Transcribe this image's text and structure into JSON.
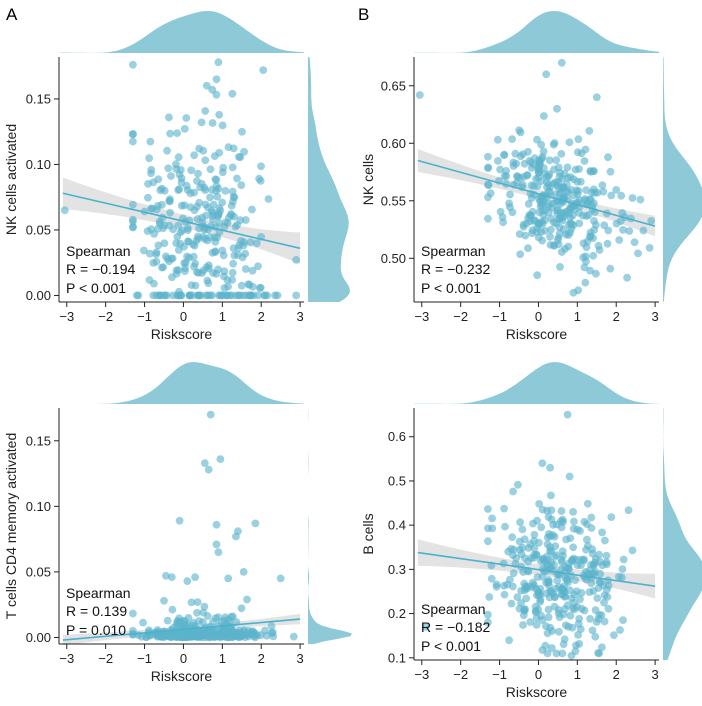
{
  "point_color": "#5cb3cc",
  "density_color": "#8ec9d8",
  "line_color": "#48b3cf",
  "band_color": "#d9d9d9",
  "chart_data": [
    {
      "type": "scatter",
      "panel_letter": "A",
      "xlabel": "Riskscore",
      "ylabel": "NK cells activated",
      "xlim": [
        -3.2,
        3.1
      ],
      "ylim": [
        -0.005,
        0.182
      ],
      "xticks": [
        -3,
        -2,
        -1,
        0,
        1,
        2,
        3
      ],
      "xtick_labels": [
        "−3",
        "−2",
        "−1",
        "0",
        "1",
        "2",
        "3"
      ],
      "yticks": [
        0.0,
        0.05,
        0.1,
        0.15
      ],
      "ytick_labels": [
        "0.00",
        "0.05",
        "0.10",
        "0.15"
      ],
      "stat_label": "Spearman",
      "r_text": "R = −0.194",
      "p_text": "P < 0.001",
      "fit_line": {
        "x": [
          -3.1,
          3.0
        ],
        "y": [
          0.078,
          0.036
        ]
      },
      "band_halfwidth": [
        0.012,
        0.005,
        0.012
      ],
      "y_mean": 0.055,
      "y_sd": 0.036,
      "y_floor": 0.0,
      "y_max": 0.178,
      "n_points": 320,
      "zero_fraction": 0.09,
      "seed": 11,
      "extra_points": [
        [
          -3.05,
          0.065
        ],
        [
          0.9,
          0.178
        ],
        [
          2.05,
          0.172
        ],
        [
          0.85,
          0.165
        ],
        [
          0.6,
          0.16
        ]
      ]
    },
    {
      "type": "scatter",
      "panel_letter": "B",
      "xlabel": "Riskscore",
      "ylabel": "NK cells",
      "xlim": [
        -3.2,
        3.1
      ],
      "ylim": [
        0.462,
        0.675
      ],
      "xticks": [
        -3,
        -2,
        -1,
        0,
        1,
        2,
        3
      ],
      "xtick_labels": [
        "−3",
        "−2",
        "−1",
        "0",
        "1",
        "2",
        "3"
      ],
      "yticks": [
        0.5,
        0.55,
        0.6,
        0.65
      ],
      "ytick_labels": [
        "0.50",
        "0.55",
        "0.60",
        "0.65"
      ],
      "stat_label": "Spearman",
      "r_text": "R = −0.232",
      "p_text": "P < 0.001",
      "fit_line": {
        "x": [
          -3.1,
          3.0
        ],
        "y": [
          0.585,
          0.528
        ]
      },
      "band_halfwidth": [
        0.01,
        0.004,
        0.009
      ],
      "y_mean": 0.553,
      "y_sd": 0.025,
      "y_floor": 0.47,
      "y_max": 0.67,
      "n_points": 320,
      "zero_fraction": 0.0,
      "seed": 23,
      "extra_points": [
        [
          -3.05,
          0.642
        ],
        [
          0.6,
          0.67
        ],
        [
          0.2,
          0.66
        ],
        [
          1.5,
          0.64
        ],
        [
          0.9,
          0.47
        ]
      ]
    },
    {
      "type": "scatter",
      "panel_letter": "",
      "xlabel": "Riskscore",
      "ylabel": "T cells CD4 memory activated",
      "xlim": [
        -3.2,
        3.1
      ],
      "ylim": [
        -0.005,
        0.175
      ],
      "xticks": [
        -3,
        -2,
        -1,
        0,
        1,
        2,
        3
      ],
      "xtick_labels": [
        "−3",
        "−2",
        "−1",
        "0",
        "1",
        "2",
        "3"
      ],
      "yticks": [
        0.0,
        0.05,
        0.1,
        0.15
      ],
      "ytick_labels": [
        "0.00",
        "0.05",
        "0.10",
        "0.15"
      ],
      "stat_label": "Spearman",
      "r_text": "R = 0.139",
      "p_text": "P = 0.010",
      "fit_line": {
        "x": [
          -3.1,
          3.0
        ],
        "y": [
          -0.002,
          0.014
        ]
      },
      "band_halfwidth": [
        0.004,
        0.002,
        0.004
      ],
      "y_mean": 0.004,
      "y_sd": 0.012,
      "y_floor": 0.0,
      "y_max": 0.17,
      "n_points": 320,
      "zero_fraction": 0.62,
      "seed": 37,
      "extra_points": [
        [
          0.7,
          0.17
        ],
        [
          0.95,
          0.136
        ],
        [
          0.55,
          0.133
        ],
        [
          0.65,
          0.128
        ],
        [
          -0.1,
          0.089
        ],
        [
          0.85,
          0.086
        ],
        [
          1.4,
          0.081
        ],
        [
          1.85,
          0.087
        ],
        [
          0.85,
          0.071
        ],
        [
          0.9,
          0.065
        ],
        [
          1.35,
          0.077
        ],
        [
          1.55,
          0.05
        ],
        [
          2.5,
          0.045
        ],
        [
          -0.45,
          0.047
        ],
        [
          -0.3,
          0.046
        ],
        [
          0.3,
          0.046
        ],
        [
          0.1,
          0.043
        ],
        [
          1.15,
          0.045
        ]
      ]
    },
    {
      "type": "scatter",
      "panel_letter": "",
      "xlabel": "Riskscore",
      "ylabel": "B cells",
      "xlim": [
        -3.2,
        3.1
      ],
      "ylim": [
        0.095,
        0.665
      ],
      "xticks": [
        -3,
        -2,
        -1,
        0,
        1,
        2,
        3
      ],
      "xtick_labels": [
        "−3",
        "−2",
        "−1",
        "0",
        "1",
        "2",
        "3"
      ],
      "yticks": [
        0.1,
        0.2,
        0.3,
        0.4,
        0.5,
        0.6
      ],
      "ytick_labels": [
        "0.1",
        "0.2",
        "0.3",
        "0.4",
        "0.5",
        "0.6"
      ],
      "stat_label": "Spearman",
      "r_text": "R = −0.182",
      "p_text": "P < 0.001",
      "fit_line": {
        "x": [
          -3.1,
          3.0
        ],
        "y": [
          0.338,
          0.262
        ]
      },
      "band_halfwidth": [
        0.03,
        0.012,
        0.028
      ],
      "y_mean": 0.29,
      "y_sd": 0.075,
      "y_floor": 0.11,
      "y_max": 0.65,
      "n_points": 320,
      "zero_fraction": 0.0,
      "seed": 53,
      "extra_points": [
        [
          0.75,
          0.65
        ],
        [
          0.1,
          0.54
        ],
        [
          0.3,
          0.53
        ],
        [
          0.8,
          0.51
        ],
        [
          -2.9,
          0.17
        ],
        [
          0.85,
          0.105
        ]
      ]
    }
  ]
}
